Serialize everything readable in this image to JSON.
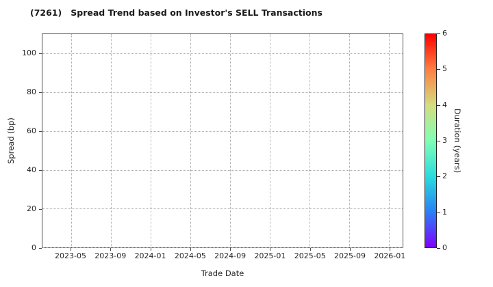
{
  "chart_data": {
    "type": "scatter",
    "title": "(7261)   Spread Trend based on Investor's SELL Transactions",
    "xlabel": "Trade Date",
    "ylabel": "Spread (bp)",
    "x_tick_labels": [
      "2023-05",
      "2023-09",
      "2024-01",
      "2024-05",
      "2024-09",
      "2025-01",
      "2025-05",
      "2025-09",
      "2026-01"
    ],
    "y_ticks": [
      0,
      20,
      40,
      60,
      80,
      100
    ],
    "ylim": [
      0,
      110
    ],
    "grid": true,
    "grid_style": "dotted",
    "points": [],
    "colorbar": {
      "label": "Duration (years)",
      "ticks": [
        0,
        1,
        2,
        3,
        4,
        5,
        6
      ],
      "min": 0,
      "max": 6,
      "colormap": "rainbow",
      "gradient_stops": [
        "#8000ff",
        "#2a80f6",
        "#2adddd",
        "#80ffb4",
        "#d4dd80",
        "#ff8042",
        "#ff0000"
      ]
    },
    "colors": {
      "text": "#262626",
      "title": "#1a1a1a",
      "grid": "#ababab",
      "spine": "#4a4a4a",
      "background": "#ffffff"
    }
  }
}
